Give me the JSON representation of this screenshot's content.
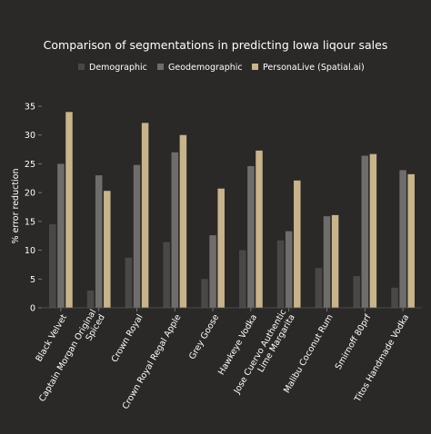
{
  "chart_data": {
    "type": "bar",
    "title": "Comparison of segmentations in predicting Iowa liqour sales",
    "ylabel": "% error reduction",
    "xlabel": "",
    "ylim": [
      0,
      35
    ],
    "yticks": [
      0,
      5,
      10,
      15,
      20,
      25,
      30,
      35
    ],
    "grid": false,
    "legend_position": "top-center",
    "categories": [
      "Black Velvet",
      "Captain Morgan Original Spiced",
      "Crown Royal",
      "Crown Royal Regal Apple",
      "Grey Goose",
      "Hawkeye Vodka",
      "Jose Cuervo Authentic Lime Margarita",
      "Malibu Coconut Rum",
      "Smirnoff 80prf",
      "Titos Handmade Vodka"
    ],
    "category_label_lines": [
      [
        "Black Velvet"
      ],
      [
        "Captain Morgan Original",
        "Spiced"
      ],
      [
        "Crown Royal"
      ],
      [
        "Crown Royal Regal Apple"
      ],
      [
        "Grey Goose"
      ],
      [
        "Hawkeye Vodka"
      ],
      [
        "Jose Cuervo Authentic",
        "Lime Margarita"
      ],
      [
        "Malibu Coconut Rum"
      ],
      [
        "Smirnoff 80prf"
      ],
      [
        "Titos Handmade Vodka"
      ]
    ],
    "series": [
      {
        "name": "Demographic",
        "color": "#4a4846",
        "values": [
          14.5,
          3.0,
          8.7,
          11.4,
          5.0,
          10.0,
          11.7,
          6.9,
          5.5,
          3.5
        ]
      },
      {
        "name": "Geodemographic",
        "color": "#6f6d6b",
        "values": [
          25.0,
          23.0,
          24.8,
          27.0,
          12.6,
          24.6,
          13.3,
          15.9,
          26.4,
          23.9
        ]
      },
      {
        "name": "PersonaLive (Spatial.ai)",
        "color": "#c8b48c",
        "values": [
          34.0,
          20.3,
          32.1,
          30.0,
          20.7,
          27.3,
          22.1,
          16.1,
          26.7,
          23.2
        ]
      }
    ]
  }
}
